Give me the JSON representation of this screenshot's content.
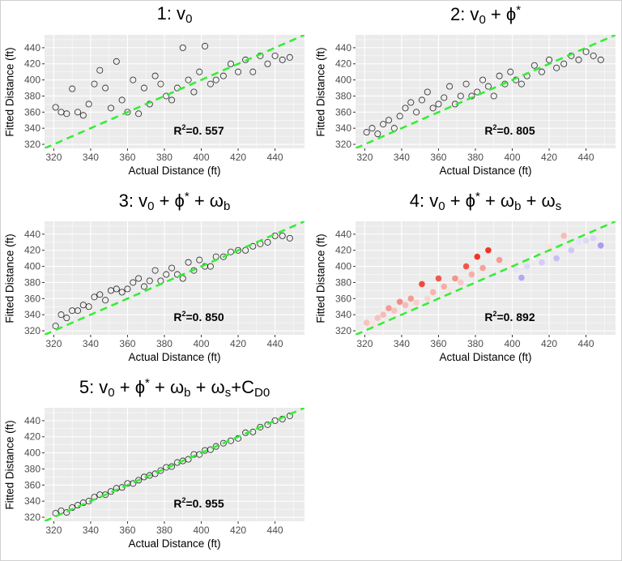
{
  "chart_data": {
    "type": "scatter",
    "xlabel": "Actual Distance (ft)",
    "ylabel": "Fitted Distance (ft)",
    "xlim": [
      315,
      456
    ],
    "ylim": [
      315,
      456
    ],
    "xticks": [
      320,
      340,
      360,
      380,
      400,
      420,
      440
    ],
    "yticks": [
      320,
      340,
      360,
      380,
      400,
      420,
      440
    ],
    "grid": true,
    "reference_line": {
      "slope": 1,
      "intercept": 0,
      "color": "#33ee33",
      "style": "dashed"
    },
    "x": [
      321,
      324,
      327,
      330,
      333,
      336,
      339,
      342,
      345,
      348,
      351,
      354,
      357,
      360,
      363,
      366,
      369,
      372,
      375,
      378,
      381,
      384,
      387,
      390,
      393,
      396,
      399,
      402,
      405,
      408,
      412,
      416,
      420,
      424,
      428,
      432,
      436,
      440,
      444,
      448
    ],
    "panels": [
      {
        "title": [
          {
            "t": "1: v"
          },
          {
            "sub": "0"
          }
        ],
        "r2_label": "0. 557",
        "marker": "open-circle",
        "y": [
          366,
          360,
          358,
          389,
          360,
          356,
          370,
          395,
          412,
          390,
          365,
          423,
          375,
          360,
          400,
          358,
          390,
          370,
          405,
          395,
          380,
          375,
          390,
          440,
          400,
          385,
          410,
          442,
          395,
          400,
          405,
          420,
          410,
          425,
          410,
          430,
          420,
          430,
          425,
          428
        ]
      },
      {
        "title": [
          {
            "t": "2: v"
          },
          {
            "sub": "0"
          },
          {
            "t": " + ϕ"
          },
          {
            "sup": "*"
          }
        ],
        "r2_label": "0. 805",
        "marker": "open-circle",
        "y": [
          335,
          340,
          333,
          345,
          350,
          340,
          355,
          365,
          372,
          360,
          375,
          385,
          365,
          370,
          378,
          392,
          370,
          380,
          395,
          380,
          385,
          400,
          392,
          380,
          405,
          395,
          410,
          400,
          395,
          405,
          418,
          410,
          425,
          415,
          420,
          430,
          425,
          435,
          430,
          425
        ]
      },
      {
        "title": [
          {
            "t": "3: v"
          },
          {
            "sub": "0"
          },
          {
            "t": " + ϕ"
          },
          {
            "sup": "*"
          },
          {
            "t": " + ω"
          },
          {
            "sub": "b"
          }
        ],
        "r2_label": "0. 850",
        "marker": "open-circle",
        "y": [
          326,
          340,
          336,
          345,
          345,
          352,
          350,
          362,
          365,
          358,
          370,
          372,
          368,
          372,
          380,
          385,
          375,
          382,
          395,
          382,
          390,
          398,
          390,
          385,
          405,
          395,
          408,
          400,
          400,
          412,
          412,
          418,
          420,
          420,
          425,
          428,
          430,
          438,
          438,
          435
        ]
      },
      {
        "title": [
          {
            "t": "4: v"
          },
          {
            "sub": "0"
          },
          {
            "t": " + ϕ"
          },
          {
            "sup": "*"
          },
          {
            "t": " + ω"
          },
          {
            "sub": "b"
          },
          {
            "t": " + ω"
          },
          {
            "sub": "s"
          }
        ],
        "r2_label": "0. 892",
        "marker": "filled-circle",
        "color_scale": {
          "high": "#ee2211",
          "mid": "#ffffff",
          "low": "#8866ee"
        },
        "y": [
          330,
          328,
          336,
          340,
          348,
          345,
          356,
          352,
          360,
          355,
          378,
          360,
          368,
          385,
          375,
          370,
          385,
          380,
          400,
          390,
          412,
          398,
          420,
          385,
          408,
          392,
          402,
          396,
          386,
          400,
          412,
          405,
          424,
          410,
          438,
          420,
          430,
          432,
          435,
          426
        ]
      },
      {
        "title": [
          {
            "t": "5: v"
          },
          {
            "sub": "0"
          },
          {
            "t": " + ϕ"
          },
          {
            "sup": "*"
          },
          {
            "t": " + ω"
          },
          {
            "sub": "b"
          },
          {
            "t": " + ω"
          },
          {
            "sub": "s"
          },
          {
            "t": "+C"
          },
          {
            "sub": "D0"
          }
        ],
        "r2_label": "0. 955",
        "marker": "open-circle",
        "y": [
          325,
          328,
          326,
          332,
          335,
          338,
          340,
          345,
          348,
          348,
          352,
          356,
          357,
          362,
          362,
          366,
          370,
          372,
          374,
          378,
          382,
          383,
          388,
          390,
          392,
          398,
          398,
          403,
          404,
          408,
          412,
          415,
          418,
          425,
          426,
          432,
          435,
          440,
          442,
          446
        ]
      }
    ]
  }
}
